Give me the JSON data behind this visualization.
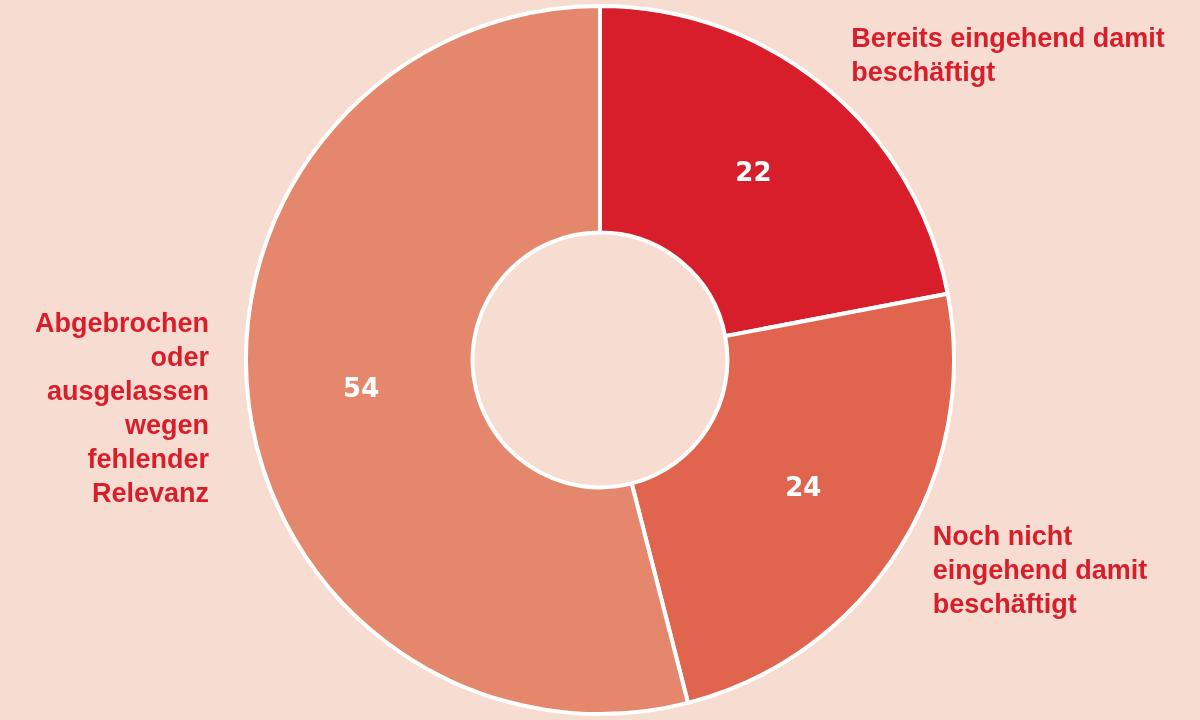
{
  "chart_data": {
    "type": "donut",
    "categories": [
      "Bereits eingehend damit beschäftigt",
      "Noch nicht eingehend damit beschäftigt",
      "Abgebrochen oder ausgelassen wegen fehlender Relevanz"
    ],
    "values": [
      22,
      24,
      54
    ],
    "colors": [
      "#d81e2a",
      "#e0644e",
      "#e5876c"
    ],
    "data_labels": true,
    "legend": false
  }
}
